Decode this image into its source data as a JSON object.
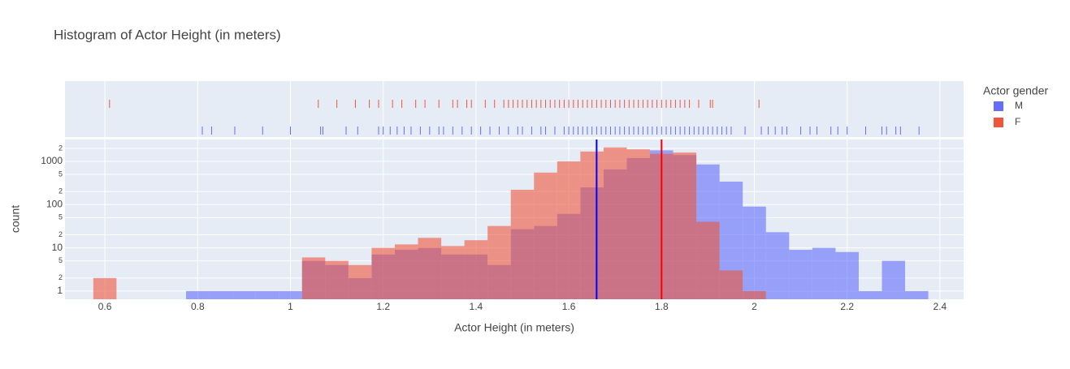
{
  "chart_data": {
    "type": "histogram",
    "title": "Histogram of Actor Height (in meters)",
    "x_label": "Actor Height (in meters)",
    "y_label": "count",
    "legend_title": "Actor gender",
    "bins": [
      0.575,
      0.625,
      0.675,
      0.725,
      0.775,
      0.825,
      0.875,
      0.925,
      0.975,
      1.025,
      1.075,
      1.125,
      1.175,
      1.225,
      1.275,
      1.325,
      1.375,
      1.425,
      1.475,
      1.525,
      1.575,
      1.625,
      1.675,
      1.725,
      1.775,
      1.825,
      1.875,
      1.925,
      1.975,
      2.025,
      2.075,
      2.125,
      2.175,
      2.225,
      2.275,
      2.325,
      2.375
    ],
    "series": [
      {
        "name": "M",
        "color": "#636efa",
        "values": [
          0,
          0,
          0,
          0,
          1,
          1,
          1,
          1,
          1,
          5,
          4,
          2,
          7,
          9,
          10,
          7,
          7,
          4,
          27,
          32,
          61,
          250,
          650,
          1190,
          1800,
          1400,
          850,
          340,
          90,
          23,
          9,
          10,
          8,
          1,
          5,
          1
        ],
        "rug": [
          0.81,
          0.83,
          0.88,
          0.94,
          1.0,
          1.065,
          1.07,
          1.12,
          1.145,
          1.19,
          1.2,
          1.215,
          1.23,
          1.245,
          1.26,
          1.28,
          1.3,
          1.32,
          1.33,
          1.35,
          1.37,
          1.39,
          1.41,
          1.43,
          1.45,
          1.47,
          1.49,
          1.5,
          1.52,
          1.54,
          1.55,
          1.57,
          1.59,
          1.6,
          1.61,
          1.62,
          1.63,
          1.64,
          1.65,
          1.66,
          1.67,
          1.68,
          1.69,
          1.7,
          1.71,
          1.72,
          1.73,
          1.74,
          1.75,
          1.76,
          1.77,
          1.78,
          1.79,
          1.8,
          1.81,
          1.82,
          1.83,
          1.84,
          1.85,
          1.86,
          1.87,
          1.88,
          1.89,
          1.9,
          1.91,
          1.92,
          1.93,
          1.94,
          1.95,
          1.98,
          2.015,
          2.03,
          2.045,
          2.06,
          2.07,
          2.1,
          2.12,
          2.135,
          2.165,
          2.18,
          2.2,
          2.24,
          2.275,
          2.285,
          2.305,
          2.315,
          2.355
        ]
      },
      {
        "name": "F",
        "color": "#ef553b",
        "values": [
          2,
          0,
          0,
          0,
          0,
          0,
          0,
          0,
          0,
          6,
          5,
          4,
          10,
          12,
          17,
          11,
          15,
          32,
          220,
          550,
          1000,
          1690,
          2100,
          1900,
          1500,
          1600,
          40,
          3,
          1,
          0,
          0,
          0,
          0,
          0,
          0,
          0
        ],
        "rug": [
          0.61,
          1.06,
          1.1,
          1.14,
          1.17,
          1.19,
          1.22,
          1.24,
          1.27,
          1.29,
          1.32,
          1.35,
          1.36,
          1.38,
          1.39,
          1.42,
          1.44,
          1.46,
          1.47,
          1.48,
          1.49,
          1.5,
          1.51,
          1.52,
          1.53,
          1.54,
          1.55,
          1.56,
          1.57,
          1.58,
          1.59,
          1.6,
          1.61,
          1.62,
          1.63,
          1.64,
          1.65,
          1.66,
          1.67,
          1.68,
          1.69,
          1.7,
          1.71,
          1.72,
          1.73,
          1.74,
          1.75,
          1.76,
          1.77,
          1.78,
          1.79,
          1.8,
          1.81,
          1.82,
          1.83,
          1.84,
          1.85,
          1.86,
          1.88,
          1.905,
          1.91,
          2.01
        ]
      }
    ],
    "vlines": [
      {
        "x": 1.66,
        "color": "#0000ff"
      },
      {
        "x": 1.8,
        "color": "#ff0000"
      }
    ],
    "xlim": [
      0.514,
      2.451
    ],
    "xticks": [
      0.6,
      0.8,
      1,
      1.2,
      1.4,
      1.6,
      1.8,
      2,
      2.2,
      2.4
    ],
    "ylim": [
      0.646,
      3208
    ],
    "log_y": true,
    "yticks": [
      1,
      2,
      5,
      10,
      {
        "value": 20,
        "label": "2"
      },
      {
        "value": 50,
        "label": "5"
      },
      100,
      {
        "value": 200,
        "label": "2"
      },
      {
        "value": 500,
        "label": "5"
      },
      1000,
      {
        "value": 2000,
        "label": "2"
      }
    ],
    "grid": true,
    "opacity": 0.6
  }
}
